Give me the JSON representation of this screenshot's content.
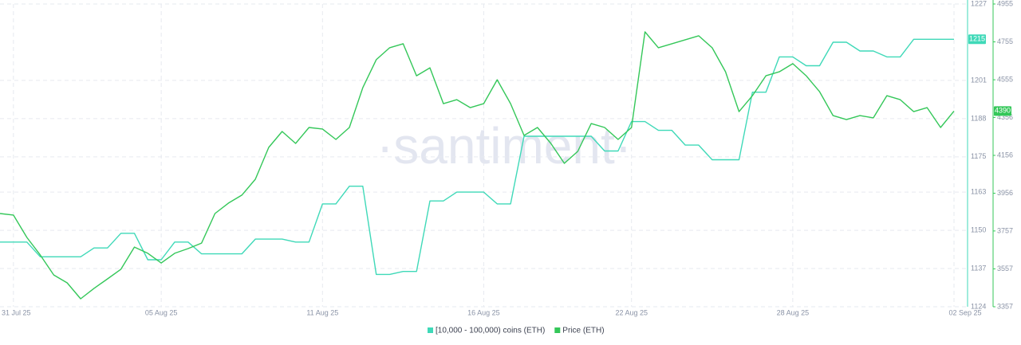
{
  "chart_data": {
    "type": "line",
    "watermark": "·santiment·",
    "grid": true,
    "categories": [
      null,
      "31 Jul 25",
      null,
      null,
      null,
      null,
      null,
      null,
      null,
      null,
      null,
      null,
      "05 Aug 25",
      null,
      null,
      null,
      null,
      null,
      null,
      null,
      null,
      null,
      null,
      null,
      "11 Aug 25",
      null,
      null,
      null,
      null,
      null,
      null,
      null,
      null,
      null,
      null,
      null,
      "16 Aug 25",
      null,
      null,
      null,
      null,
      null,
      null,
      null,
      null,
      null,
      null,
      "22 Aug 25",
      null,
      null,
      null,
      null,
      null,
      null,
      null,
      null,
      null,
      null,
      null,
      "28 Aug 25",
      null,
      null,
      null,
      null,
      null,
      null,
      null,
      null,
      null,
      null,
      null,
      "02 Sep 25"
    ],
    "series": [
      {
        "name": "[10,000 - 100,000) coins (ETH)",
        "color": "#3fd9b8",
        "axis": "y",
        "values": [
          1146,
          1146,
          1146,
          1141,
          1141,
          1141,
          1141,
          1144,
          1144,
          1149,
          1149,
          1140,
          1140,
          1146,
          1146,
          1142,
          1142,
          1142,
          1142,
          1147,
          1147,
          1147,
          1146,
          1146,
          1159,
          1159,
          1165,
          1165,
          1135,
          1135,
          1136,
          1136,
          1160,
          1160,
          1163,
          1163,
          1163,
          1159,
          1159,
          1182,
          1182,
          1182,
          1182,
          1182,
          1182,
          1177,
          1177,
          1187,
          1187,
          1184,
          1184,
          1179,
          1179,
          1174,
          1174,
          1174,
          1197,
          1197,
          1209,
          1209,
          1206,
          1206,
          1214,
          1214,
          1211,
          1211,
          1209,
          1209,
          1215,
          1215,
          1215,
          1215
        ]
      },
      {
        "name": "Price (ETH)",
        "color": "#34c759",
        "axis": "y2",
        "values": [
          3849,
          3841,
          3723,
          3630,
          3525,
          3483,
          3399,
          3454,
          3504,
          3555,
          3672,
          3639,
          3588,
          3639,
          3664,
          3693,
          3849,
          3904,
          3946,
          4030,
          4198,
          4282,
          4219,
          4303,
          4295,
          4240,
          4303,
          4513,
          4661,
          4724,
          4745,
          4576,
          4618,
          4429,
          4450,
          4408,
          4429,
          4555,
          4429,
          4261,
          4303,
          4219,
          4114,
          4177,
          4324,
          4303,
          4240,
          4303,
          4808,
          4724,
          4745,
          4766,
          4787,
          4724,
          4597,
          4387,
          4471,
          4576,
          4597,
          4640,
          4576,
          4492,
          4366,
          4345,
          4366,
          4354,
          4471,
          4450,
          4387,
          4408,
          4303,
          4390
        ]
      }
    ],
    "ylim": [
      1124,
      1227
    ],
    "yticks": [
      1124,
      1137,
      1150,
      1163,
      1175,
      1188,
      1201,
      1227
    ],
    "y2lim": [
      3357,
      4955
    ],
    "y2ticks": [
      3357,
      3557,
      3757,
      3956,
      4156,
      4356,
      4555,
      4755,
      4955
    ]
  }
}
